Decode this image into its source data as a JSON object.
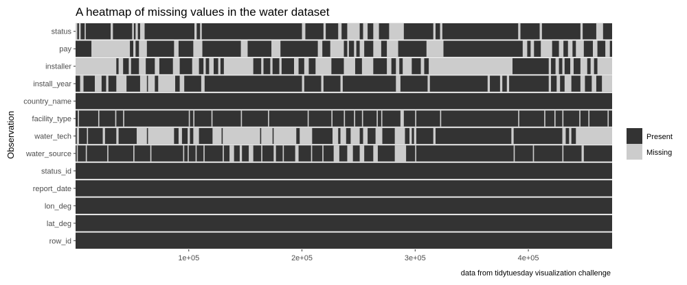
{
  "chart_data": {
    "type": "heatmap",
    "title": "A heatmap of missing values in the water dataset",
    "xlabel": "",
    "ylabel": "Observation",
    "caption": "data from tidytuesday visualization challenge",
    "xlim": [
      1,
      474000
    ],
    "x_ticks": [
      {
        "value": 100000,
        "label": "1e+05"
      },
      {
        "value": 200000,
        "label": "2e+05"
      },
      {
        "value": 300000,
        "label": "3e+05"
      },
      {
        "value": 400000,
        "label": "4e+05"
      }
    ],
    "variables": [
      "status",
      "pay",
      "installer",
      "install_year",
      "country_name",
      "facility_type",
      "water_tech",
      "water_source",
      "status_id",
      "report_date",
      "lon_deg",
      "lat_deg",
      "row_id"
    ],
    "legend": {
      "position": "right",
      "entries": [
        {
          "label": "Present",
          "color": "#333333"
        },
        {
          "label": "Missing",
          "color": "#cccccc"
        }
      ]
    },
    "colors": {
      "present": "#333333",
      "missing": "#cccccc",
      "panel": "#ebebeb"
    },
    "missing_intervals": {
      "status": [
        [
          0,
          1500
        ],
        [
          3000,
          4500
        ],
        [
          8000,
          9000
        ],
        [
          31000,
          33000
        ],
        [
          50000,
          51500
        ],
        [
          53000,
          55000
        ],
        [
          57000,
          61000
        ],
        [
          105000,
          107000
        ],
        [
          110000,
          111500
        ],
        [
          200000,
          203000
        ],
        [
          219000,
          221000
        ],
        [
          232000,
          235000
        ],
        [
          240000,
          251000
        ],
        [
          254000,
          258000
        ],
        [
          263000,
          268000
        ],
        [
          277000,
          290000
        ],
        [
          316000,
          318000
        ],
        [
          322000,
          324000
        ],
        [
          391000,
          393000
        ],
        [
          410000,
          412000
        ],
        [
          446000,
          448000
        ],
        [
          460000,
          466000
        ]
      ],
      "pay": [
        [
          14000,
          48000
        ],
        [
          51000,
          53000
        ],
        [
          56000,
          63000
        ],
        [
          87000,
          91000
        ],
        [
          104000,
          112000
        ],
        [
          146000,
          152000
        ],
        [
          173000,
          181000
        ],
        [
          214000,
          218000
        ],
        [
          225000,
          237000
        ],
        [
          240000,
          241500
        ],
        [
          246000,
          248000
        ],
        [
          251000,
          255000
        ],
        [
          263000,
          270000
        ],
        [
          275000,
          285000
        ],
        [
          310000,
          325000
        ],
        [
          395000,
          399000
        ],
        [
          402000,
          405000
        ],
        [
          411000,
          421000
        ],
        [
          427000,
          431000
        ],
        [
          435000,
          439000
        ],
        [
          442000,
          449000
        ],
        [
          457000,
          461000
        ],
        [
          468000,
          472000
        ]
      ],
      "installer": [
        [
          0,
          36000
        ],
        [
          38000,
          42000
        ],
        [
          47000,
          49000
        ],
        [
          56000,
          62000
        ],
        [
          70000,
          74000
        ],
        [
          86000,
          92000
        ],
        [
          103000,
          109000
        ],
        [
          113000,
          115000
        ],
        [
          118000,
          122000
        ],
        [
          126000,
          128000
        ],
        [
          131000,
          157000
        ],
        [
          164000,
          166000
        ],
        [
          172000,
          174000
        ],
        [
          180000,
          182000
        ],
        [
          193000,
          197000
        ],
        [
          202000,
          206000
        ],
        [
          212000,
          226000
        ],
        [
          237000,
          247000
        ],
        [
          253000,
          263000
        ],
        [
          275000,
          279000
        ],
        [
          283000,
          286000
        ],
        [
          289000,
          297000
        ],
        [
          305000,
          308000
        ],
        [
          312000,
          386000
        ],
        [
          418000,
          420000
        ],
        [
          424000,
          427000
        ],
        [
          430000,
          432000
        ],
        [
          437000,
          440000
        ],
        [
          446000,
          452000
        ],
        [
          455000,
          458000
        ],
        [
          461000,
          474000
        ]
      ],
      "install_year": [
        [
          4000,
          7000
        ],
        [
          17000,
          23000
        ],
        [
          27000,
          29000
        ],
        [
          36000,
          45000
        ],
        [
          57000,
          63000
        ],
        [
          64000,
          70000
        ],
        [
          73000,
          88000
        ],
        [
          92000,
          96000
        ],
        [
          111000,
          114000
        ],
        [
          200000,
          202000
        ],
        [
          217000,
          219000
        ],
        [
          234000,
          236000
        ],
        [
          283000,
          287000
        ],
        [
          311000,
          313000
        ],
        [
          364000,
          366000
        ],
        [
          375000,
          377000
        ],
        [
          381000,
          383000
        ],
        [
          418000,
          420000
        ],
        [
          425000,
          428000
        ],
        [
          432000,
          438000
        ],
        [
          446000,
          450000
        ],
        [
          456000,
          460000
        ],
        [
          465000,
          474000
        ]
      ],
      "country_name": [],
      "facility_type": [
        [
          2000,
          3000
        ],
        [
          20000,
          21000
        ],
        [
          35000,
          36000
        ],
        [
          42000,
          43000
        ],
        [
          100000,
          101000
        ],
        [
          104000,
          105000
        ],
        [
          120000,
          121000
        ],
        [
          146000,
          147000
        ],
        [
          170000,
          171000
        ],
        [
          205000,
          206000
        ],
        [
          226000,
          227000
        ],
        [
          237000,
          238000
        ],
        [
          246000,
          247000
        ],
        [
          253000,
          254000
        ],
        [
          266000,
          267000
        ],
        [
          270000,
          271000
        ],
        [
          287000,
          290000
        ],
        [
          300000,
          301000
        ],
        [
          322000,
          323000
        ],
        [
          391000,
          392000
        ],
        [
          414000,
          415000
        ],
        [
          423000,
          424000
        ],
        [
          430000,
          431000
        ],
        [
          445000,
          446000
        ],
        [
          453000,
          454000
        ],
        [
          470000,
          471000
        ]
      ],
      "water_tech": [
        [
          1000,
          3000
        ],
        [
          10000,
          11000
        ],
        [
          24000,
          26000
        ],
        [
          36000,
          38000
        ],
        [
          54000,
          63000
        ],
        [
          64000,
          87000
        ],
        [
          91000,
          94000
        ],
        [
          99000,
          101000
        ],
        [
          104000,
          109000
        ],
        [
          121000,
          129000
        ],
        [
          130000,
          163000
        ],
        [
          164000,
          174000
        ],
        [
          175000,
          195000
        ],
        [
          198000,
          209000
        ],
        [
          227000,
          232000
        ],
        [
          234000,
          239000
        ],
        [
          243000,
          251000
        ],
        [
          254000,
          258000
        ],
        [
          265000,
          271000
        ],
        [
          282000,
          291000
        ],
        [
          295000,
          297000
        ],
        [
          299000,
          301000
        ],
        [
          316000,
          318000
        ],
        [
          385000,
          387000
        ],
        [
          430000,
          433000
        ],
        [
          436000,
          438000
        ],
        [
          442000,
          474000
        ]
      ],
      "water_source": [
        [
          1000,
          2000
        ],
        [
          9000,
          10000
        ],
        [
          28000,
          29000
        ],
        [
          51000,
          52000
        ],
        [
          66000,
          67000
        ],
        [
          95000,
          96000
        ],
        [
          99000,
          100000
        ],
        [
          106000,
          107000
        ],
        [
          113000,
          114000
        ],
        [
          130000,
          131000
        ],
        [
          136000,
          140000
        ],
        [
          145000,
          147000
        ],
        [
          153000,
          157000
        ],
        [
          164000,
          165000
        ],
        [
          175000,
          177000
        ],
        [
          183000,
          184000
        ],
        [
          194000,
          197000
        ],
        [
          208000,
          209000
        ],
        [
          218000,
          219000
        ],
        [
          228000,
          233000
        ],
        [
          240000,
          245000
        ],
        [
          251000,
          255000
        ],
        [
          263000,
          267000
        ],
        [
          282000,
          292000
        ],
        [
          300000,
          301000
        ],
        [
          387000,
          388000
        ],
        [
          404000,
          405000
        ],
        [
          430000,
          431000
        ],
        [
          447000,
          449000
        ]
      ],
      "status_id": [],
      "report_date": [],
      "lon_deg": [],
      "lat_deg": [],
      "row_id": []
    }
  }
}
